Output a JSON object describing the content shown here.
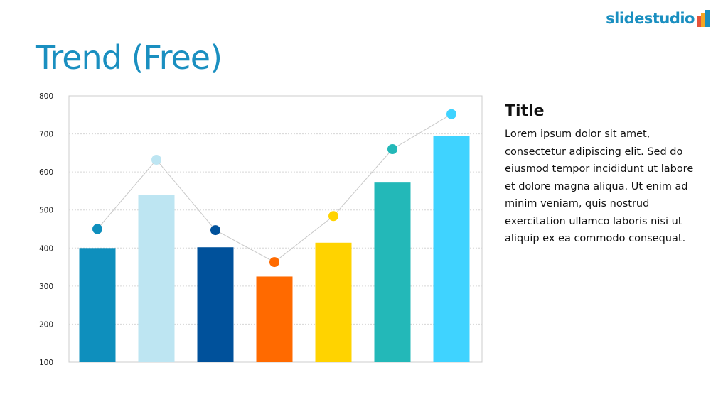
{
  "brand": {
    "logo_text": "slidestudio",
    "logo_colors": [
      "#e5533a",
      "#f5a623",
      "#1a8fc0"
    ]
  },
  "page": {
    "title": "Trend (Free)"
  },
  "text_panel": {
    "title": "Title",
    "body": "Lorem ipsum dolor sit amet, consectetur adipiscing elit. Sed do eiusmod tempor incididunt ut labore et dolore magna aliqua. Ut enim ad minim veniam, quis nostrud exercitation ullamco laboris nisi ut aliquip ex ea commodo consequat."
  },
  "chart_data": {
    "type": "bar",
    "categories": [
      "",
      "",
      "",
      "",
      "",
      "",
      ""
    ],
    "series": [
      {
        "type": "bar",
        "values": [
          400,
          540,
          402,
          325,
          414,
          572,
          695
        ]
      },
      {
        "type": "line",
        "values": [
          450,
          632,
          447,
          363,
          484,
          660,
          752
        ]
      }
    ],
    "colors": [
      "#0e8fbd",
      "#bde5f2",
      "#00519b",
      "#ff6a00",
      "#ffd300",
      "#23b8b8",
      "#3fd3ff"
    ],
    "line_color": "#c8c8c8",
    "ylim": [
      100,
      800
    ],
    "yticks": [
      100,
      200,
      300,
      400,
      500,
      600,
      700,
      800
    ],
    "grid": true,
    "title": "",
    "xlabel": "",
    "ylabel": ""
  }
}
